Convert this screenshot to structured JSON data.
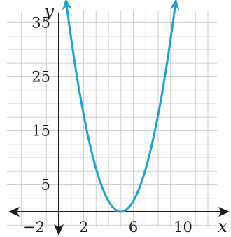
{
  "chart_data": {
    "type": "line",
    "title": "",
    "xlabel": "x",
    "ylabel": "y",
    "xlim": [
      -3,
      12
    ],
    "ylim": [
      -4,
      40
    ],
    "x_ticks": [
      -2,
      2,
      6,
      10
    ],
    "x_tick_labels": [
      "−2",
      "2",
      "6",
      "10"
    ],
    "y_ticks": [
      5,
      15,
      25,
      35
    ],
    "y_tick_labels": [
      "5",
      "15",
      "25",
      "35"
    ],
    "grid": true,
    "grid_step_x": 1,
    "grid_step_y": 2.5,
    "series": [
      {
        "function": "y = 2(x - 5)^2",
        "vertex": [
          5,
          0
        ],
        "x": [
          0.6,
          1,
          2,
          3,
          4,
          5,
          6,
          7,
          8,
          9,
          9.4
        ],
        "y": [
          38.7,
          32,
          18,
          8,
          2,
          0,
          2,
          8,
          18,
          32,
          38.7
        ],
        "color": "#1da1d8",
        "arrows": "both"
      }
    ]
  }
}
